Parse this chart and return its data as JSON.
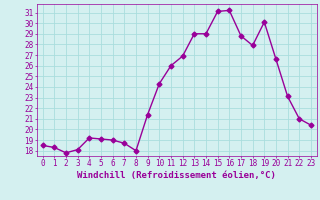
{
  "x": [
    0,
    1,
    2,
    3,
    4,
    5,
    6,
    7,
    8,
    9,
    10,
    11,
    12,
    13,
    14,
    15,
    16,
    17,
    18,
    19,
    20,
    21,
    22,
    23
  ],
  "y": [
    18.5,
    18.3,
    17.8,
    18.1,
    19.2,
    19.1,
    19.0,
    18.7,
    18.0,
    21.4,
    24.3,
    26.0,
    26.9,
    29.0,
    29.0,
    31.1,
    31.2,
    28.8,
    27.9,
    30.1,
    26.6,
    23.1,
    21.0,
    20.4
  ],
  "line_color": "#990099",
  "marker": "D",
  "markersize": 2.5,
  "linewidth": 1.0,
  "bg_color": "#d4f0f0",
  "grid_color": "#aadddd",
  "xlabel": "Windchill (Refroidissement éolien,°C)",
  "xlabel_color": "#990099",
  "xlabel_fontsize": 6.5,
  "tick_color": "#990099",
  "tick_fontsize": 5.5,
  "ytick_min": 18,
  "ytick_max": 31,
  "xtick_labels": [
    "0",
    "1",
    "2",
    "3",
    "4",
    "5",
    "6",
    "7",
    "8",
    "9",
    "10",
    "11",
    "12",
    "13",
    "14",
    "15",
    "16",
    "17",
    "18",
    "19",
    "20",
    "21",
    "22",
    "23"
  ]
}
